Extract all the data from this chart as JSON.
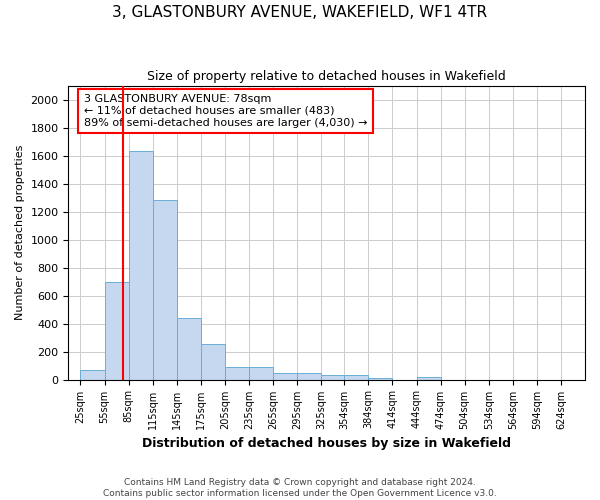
{
  "title": "3, GLASTONBURY AVENUE, WAKEFIELD, WF1 4TR",
  "subtitle": "Size of property relative to detached houses in Wakefield",
  "xlabel": "Distribution of detached houses by size in Wakefield",
  "ylabel": "Number of detached properties",
  "bin_labels": [
    "25sqm",
    "55sqm",
    "85sqm",
    "115sqm",
    "145sqm",
    "175sqm",
    "205sqm",
    "235sqm",
    "265sqm",
    "295sqm",
    "325sqm",
    "354sqm",
    "384sqm",
    "414sqm",
    "444sqm",
    "474sqm",
    "504sqm",
    "534sqm",
    "564sqm",
    "594sqm",
    "624sqm"
  ],
  "bin_starts": [
    25,
    55,
    85,
    115,
    145,
    175,
    205,
    235,
    265,
    295,
    325,
    354,
    384,
    414,
    444,
    474,
    504,
    534,
    564,
    594,
    624
  ],
  "bin_width": 30,
  "bar_values": [
    65,
    700,
    1630,
    1285,
    440,
    255,
    90,
    90,
    50,
    45,
    30,
    30,
    10,
    0,
    15,
    0,
    0,
    0,
    0,
    0
  ],
  "bar_color": "#c5d8f0",
  "bar_edge_color": "#6aaed6",
  "property_size": 78,
  "vline_color": "#ff0000",
  "annotation_text": "3 GLASTONBURY AVENUE: 78sqm\n← 11% of detached houses are smaller (483)\n89% of semi-detached houses are larger (4,030) →",
  "annotation_box_color": "#ff0000",
  "ylim": [
    0,
    2100
  ],
  "yticks": [
    0,
    200,
    400,
    600,
    800,
    1000,
    1200,
    1400,
    1600,
    1800,
    2000
  ],
  "footer_line1": "Contains HM Land Registry data © Crown copyright and database right 2024.",
  "footer_line2": "Contains public sector information licensed under the Open Government Licence v3.0.",
  "bg_color": "#ffffff",
  "grid_color": "#cccccc"
}
